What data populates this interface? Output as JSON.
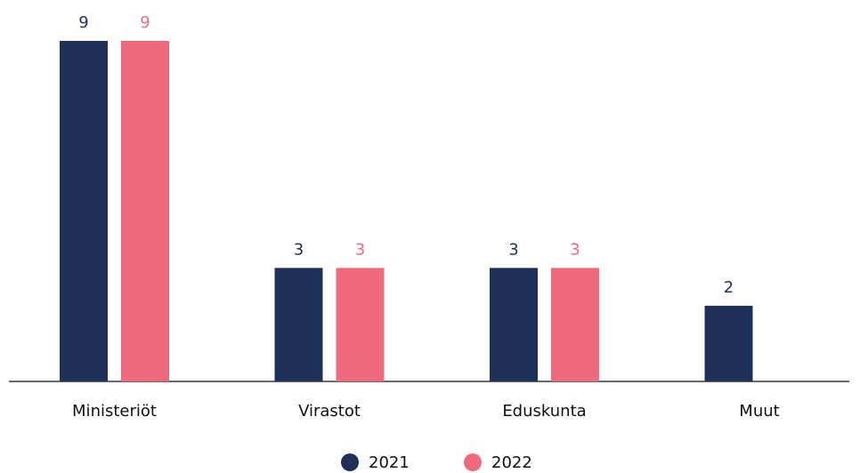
{
  "chart_data": {
    "type": "bar",
    "categories": [
      "Ministeriöt",
      "Virastot",
      "Eduskunta",
      "Muut"
    ],
    "series": [
      {
        "name": "2021",
        "color": "#1f3158",
        "values": [
          9,
          3,
          3,
          2
        ]
      },
      {
        "name": "2022",
        "color": "#ee6a7c",
        "values": [
          9,
          3,
          3,
          null
        ]
      }
    ],
    "legend": "bottom"
  }
}
